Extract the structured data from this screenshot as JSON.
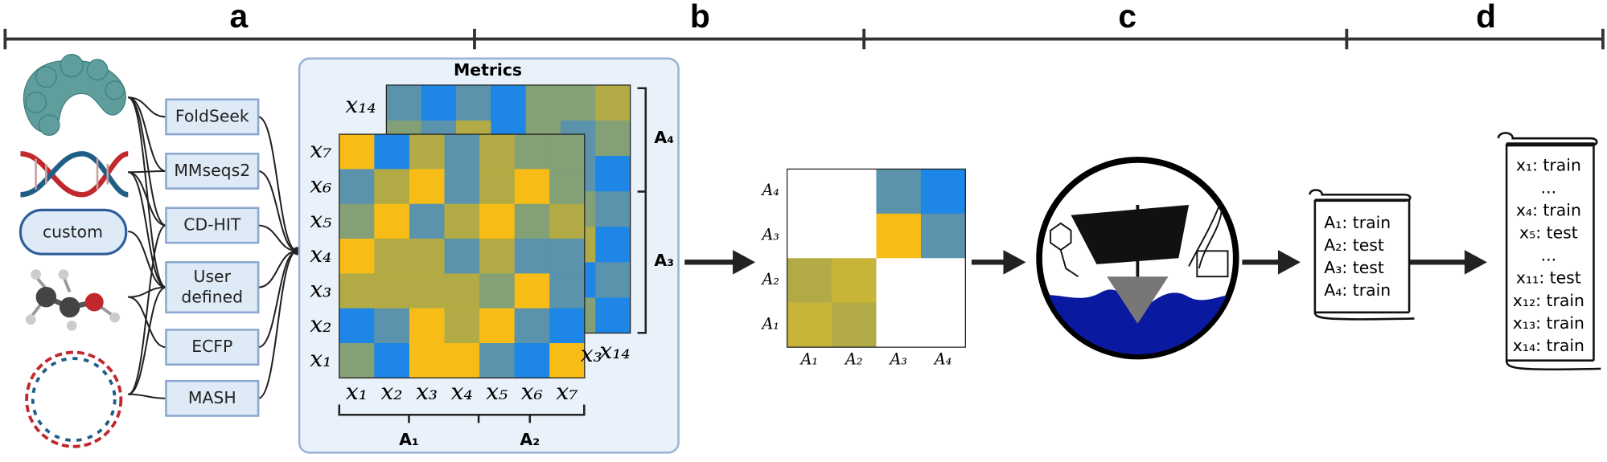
{
  "sections": [
    "a",
    "b",
    "c",
    "d"
  ],
  "inputs": {
    "custom": "custom"
  },
  "tools": [
    [
      "FoldSeek"
    ],
    [
      "MMseqs2"
    ],
    [
      "CD-HIT"
    ],
    [
      "User",
      "defined"
    ],
    [
      "ECFP"
    ],
    [
      "MASH"
    ]
  ],
  "metrics": {
    "title": "Metrics",
    "row_labels": [
      "x₇",
      "x₆",
      "x₅",
      "x₄",
      "x₃",
      "x₂",
      "x₁"
    ],
    "back_row_label": "x₁₄",
    "column_labels": [
      "x₁",
      "x₂",
      "x₃",
      "x₄",
      "x₅",
      "x₆",
      "x₇"
    ],
    "back_column_labels": [
      "x₃",
      "x₁₄"
    ],
    "clusters": [
      "A₁",
      "A₂",
      "A₃",
      "A₄"
    ]
  },
  "cluster_matrix": {
    "row_labels": [
      "A₄",
      "A₃",
      "A₂",
      "A₁"
    ],
    "column_labels": [
      "A₁",
      "A₂",
      "A₃",
      "A₄"
    ]
  },
  "cluster_split": [
    "A₁: train",
    "A₂: test",
    "A₃: test",
    "A₄: train"
  ],
  "sample_split": [
    "x₁: train",
    "...",
    "x₄: train",
    "x₅: test",
    "...",
    "x₁₁: test",
    "x₁₂: train",
    "x₁₃: train",
    "x₁₄: train"
  ]
}
